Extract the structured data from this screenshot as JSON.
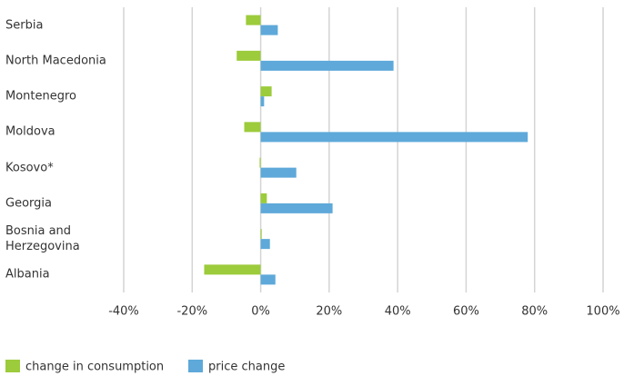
{
  "chart_data": {
    "type": "hbar",
    "categories": [
      "Serbia",
      "North Macedonia",
      "Montenegro",
      "Moldova",
      "Kosovo*",
      "Georgia",
      "Bosnia and Herzegovina",
      "Albania"
    ],
    "series": [
      {
        "name": "change in consumption",
        "color": "#9ccb3b",
        "values": [
          -4.3,
          -7,
          3.2,
          -4.8,
          -0.3,
          1.8,
          0.3,
          -16.5
        ]
      },
      {
        "name": "price change",
        "color": "#5ea9d9",
        "values": [
          5,
          38.8,
          1,
          78,
          10.4,
          21,
          2.7,
          4.3
        ]
      }
    ],
    "xlim": [
      -40,
      100
    ],
    "xticks": [
      {
        "value": -40,
        "label": "-40%"
      },
      {
        "value": -20,
        "label": "-20%"
      },
      {
        "value": 0,
        "label": "0%"
      },
      {
        "value": 20,
        "label": "20%"
      },
      {
        "value": 40,
        "label": "40%"
      },
      {
        "value": 60,
        "label": "60%"
      },
      {
        "value": 80,
        "label": "80%"
      },
      {
        "value": 100,
        "label": "100%"
      }
    ],
    "grid": true
  }
}
